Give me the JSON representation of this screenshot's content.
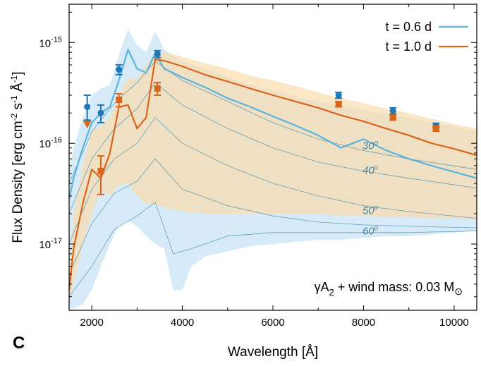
{
  "chart_data": {
    "type": "line",
    "panel_label": "C",
    "xlabel": "Wavelength [Å]",
    "ylabel_parts": {
      "a": "Flux Density [erg cm",
      "b": "-2",
      "c": " s",
      "d": "-1",
      "e": " Å",
      "f": "-1",
      "g": "]"
    },
    "xlim": [
      1500,
      10500
    ],
    "ylim": [
      2.2e-18,
      2.4e-15
    ],
    "yscale": "log",
    "x_ticks": [
      {
        "value": 2000,
        "label": "2000"
      },
      {
        "value": 4000,
        "label": "4000"
      },
      {
        "value": 6000,
        "label": "6000"
      },
      {
        "value": 8000,
        "label": "8000"
      },
      {
        "value": 10000,
        "label": "10000"
      }
    ],
    "y_ticks": [
      {
        "value": 1e-15,
        "base": "10",
        "exp": "-15"
      },
      {
        "value": 1e-16,
        "base": "10",
        "exp": "-16"
      },
      {
        "value": 1e-17,
        "base": "10",
        "exp": "-17"
      }
    ],
    "legend_placement": "top-right",
    "legend": [
      {
        "label": "t = 0.6 d",
        "color": "#5ab4dd"
      },
      {
        "label": "t = 1.0 d",
        "color": "#d9651b"
      }
    ],
    "model_label": {
      "a": "γA",
      "b": "2",
      "c": " + wind mass: 0.03 M",
      "d": "⊙"
    },
    "angle_labels": [
      {
        "text": "30",
        "sup": "o",
        "x": 8150,
        "y": 9.5e-17
      },
      {
        "text": "40",
        "sup": "o",
        "x": 8150,
        "y": 5.4e-17
      },
      {
        "text": "50",
        "sup": "o",
        "x": 8150,
        "y": 2.15e-17
      },
      {
        "text": "60",
        "sup": "o",
        "x": 8150,
        "y": 1.35e-17
      }
    ],
    "series": [
      {
        "name": "t = 0.6 d",
        "color": "#5ab4dd",
        "band_color": "#cfe8f6",
        "band_upper": {
          "x": [
            1500,
            1600,
            1800,
            2000,
            2200,
            2400,
            2600,
            2800,
            3000,
            3200,
            3400,
            3600,
            4000,
            4500,
            5000,
            5500,
            6000,
            6500,
            7000,
            7500,
            8000,
            8500,
            9000,
            9500,
            10000,
            10500
          ],
          "y": [
            5.5e-17,
            9e-17,
            1.8e-16,
            3e-16,
            3.5e-16,
            3.8e-16,
            7.5e-16,
            1.35e-15,
            9.5e-16,
            8e-16,
            1.3e-15,
            8.5e-16,
            6.5e-16,
            5.5e-16,
            4.5e-16,
            3.8e-16,
            3.3e-16,
            2.9e-16,
            2.6e-16,
            2.35e-16,
            2.15e-16,
            1.95e-16,
            1.8e-16,
            1.6e-16,
            1.45e-16,
            1.3e-16
          ]
        },
        "band_lower": {
          "x": [
            1500,
            1600,
            1800,
            2000,
            2200,
            2400,
            2600,
            2800,
            3000,
            3200,
            3400,
            3600,
            3800,
            4000,
            4200,
            4500,
            5000,
            5500,
            6000,
            6500,
            7000,
            7500,
            8000,
            8500,
            9000,
            9500,
            10000,
            10500
          ],
          "y": [
            2.3e-18,
            2.3e-18,
            2.5e-18,
            3.5e-18,
            6e-18,
            1e-17,
            1.5e-17,
            1.7e-17,
            1.5e-17,
            1.2e-17,
            1e-17,
            9e-18,
            3.5e-18,
            3.5e-18,
            6e-18,
            7.5e-18,
            8.5e-18,
            9.5e-18,
            1e-17,
            1.05e-17,
            1.1e-17,
            1.1e-17,
            1.15e-17,
            1.2e-17,
            1.2e-17,
            1.25e-17,
            1.3e-17,
            1.35e-17
          ]
        },
        "line": {
          "x": [
            1500,
            1600,
            1800,
            2000,
            2200,
            2400,
            2600,
            2800,
            3000,
            3200,
            3400,
            3600,
            4000,
            4500,
            5000,
            5500,
            6000,
            6500,
            7000,
            7500,
            8000,
            8500,
            9000,
            9500,
            10000,
            10500
          ],
          "y": [
            2.8e-17,
            4.5e-17,
            9e-17,
            1.6e-16,
            2e-16,
            2.3e-16,
            4.2e-16,
            8.5e-16,
            5.5e-16,
            5e-16,
            7.8e-16,
            5.5e-16,
            4.5e-16,
            3.6e-16,
            2.8e-16,
            2.3e-16,
            1.85e-16,
            1.5e-16,
            1.2e-16,
            9e-17,
            1.1e-16,
            8.5e-17,
            7e-17,
            6e-17,
            5.2e-17,
            4.5e-17
          ]
        },
        "points": [
          {
            "x": 1900,
            "y": 2.3e-16,
            "yerr_low": 1.7e-16,
            "yerr_high": 3e-16,
            "marker": "circle"
          },
          {
            "x": 2200,
            "y": 2e-16,
            "yerr_low": 1.6e-16,
            "yerr_high": 2.4e-16,
            "marker": "circle"
          },
          {
            "x": 2600,
            "y": 5.4e-16,
            "yerr_low": 4.8e-16,
            "yerr_high": 6e-16,
            "marker": "circle"
          },
          {
            "x": 3450,
            "y": 7.7e-16,
            "yerr_low": 7.1e-16,
            "yerr_high": 8.3e-16,
            "marker": "circle"
          },
          {
            "x": 7450,
            "y": 3e-16,
            "yerr_low": 2.8e-16,
            "yerr_high": 3.2e-16,
            "marker": "circle"
          },
          {
            "x": 8650,
            "y": 2.1e-16,
            "yerr_low": 1.95e-16,
            "yerr_high": 2.25e-16,
            "marker": "circle"
          },
          {
            "x": 9600,
            "y": 1.5e-16,
            "yerr_low": 1.42e-16,
            "yerr_high": 1.58e-16,
            "marker": "circle"
          }
        ]
      },
      {
        "name": "t = 1.0 d",
        "color": "#d9651b",
        "band_color": "#f9dcae",
        "band_upper": {
          "x": [
            1500,
            1600,
            1800,
            2000,
            2200,
            2400,
            2600,
            2800,
            3000,
            3200,
            3400,
            3600,
            4000,
            4500,
            5000,
            5500,
            6000,
            6500,
            7000,
            7500,
            8000,
            8500,
            9000,
            9500,
            10000,
            10500
          ],
          "y": [
            5e-18,
            2e-17,
            6e-17,
            1.3e-16,
            1.5e-16,
            1.8e-16,
            3e-16,
            4.5e-16,
            4.3e-16,
            6e-16,
            7.8e-16,
            8e-16,
            7.2e-16,
            6.2e-16,
            5.5e-16,
            4.7e-16,
            4.2e-16,
            3.7e-16,
            3.2e-16,
            2.8e-16,
            2.5e-16,
            2.2e-16,
            2e-16,
            1.75e-16,
            1.55e-16,
            1.4e-16
          ]
        },
        "band_lower": {
          "x": [
            1500,
            1600,
            1800,
            2000,
            2200,
            2400,
            2600,
            2800,
            3000,
            3200,
            3400,
            3600,
            4000,
            4500,
            5000,
            5500,
            6000,
            6500,
            7000,
            7500,
            8000,
            8500,
            9000,
            9500,
            10000,
            10500
          ],
          "y": [
            2.5e-18,
            4e-18,
            1e-17,
            2e-17,
            3.5e-17,
            3e-17,
            3.8e-17,
            4e-17,
            3e-17,
            2.5e-17,
            2.5e-17,
            2.3e-17,
            2.1e-17,
            2e-17,
            2e-17,
            2e-17,
            2e-17,
            2e-17,
            2e-17,
            1.9e-17,
            1.9e-17,
            1.85e-17,
            1.85e-17,
            1.8e-17,
            1.8e-17,
            1.75e-17
          ]
        },
        "line": {
          "x": [
            1500,
            1600,
            1800,
            2000,
            2200,
            2400,
            2600,
            2800,
            3000,
            3200,
            3400,
            3600,
            4000,
            4500,
            5000,
            5500,
            6000,
            6500,
            7000,
            7500,
            8000,
            8500,
            9000,
            9500,
            10000,
            10500
          ],
          "y": [
            3.5e-18,
            9e-18,
            2.5e-17,
            5.5e-17,
            4.5e-17,
            8e-17,
            2.3e-16,
            2.4e-16,
            1.4e-16,
            1.8e-16,
            6.8e-16,
            6.6e-16,
            5.8e-16,
            4.8e-16,
            4.1e-16,
            3.5e-16,
            3e-16,
            2.6e-16,
            2.25e-16,
            1.9e-16,
            1.65e-16,
            1.4e-16,
            1.2e-16,
            1e-16,
            8.8e-17,
            7.6e-17
          ]
        },
        "points": [
          {
            "x": 1900,
            "y": 1.55e-16,
            "marker": "down-triangle"
          },
          {
            "x": 2200,
            "y": 5.3e-17,
            "yerr_low": 3.1e-17,
            "yerr_high": 7.5e-17,
            "marker": "square"
          },
          {
            "x": 2600,
            "y": 2.7e-16,
            "yerr_low": 2.3e-16,
            "yerr_high": 3.1e-16,
            "marker": "square"
          },
          {
            "x": 3450,
            "y": 3.5e-16,
            "yerr_low": 3e-16,
            "yerr_high": 4e-16,
            "marker": "square"
          },
          {
            "x": 7450,
            "y": 2.45e-16,
            "yerr_low": 2.3e-16,
            "yerr_high": 2.6e-16,
            "marker": "square"
          },
          {
            "x": 8650,
            "y": 1.8e-16,
            "yerr_low": 1.7e-16,
            "yerr_high": 1.9e-16,
            "marker": "square"
          },
          {
            "x": 9600,
            "y": 1.4e-16,
            "yerr_low": 1.32e-16,
            "yerr_high": 1.48e-16,
            "marker": "square"
          }
        ]
      }
    ],
    "angle_curves": [
      {
        "x": [
          1500,
          2000,
          2500,
          3000,
          3400,
          4000,
          5000,
          6000,
          7000,
          8000,
          9000,
          10500
        ],
        "y": [
          4e-17,
          1.3e-16,
          2.5e-16,
          4e-16,
          6.5e-16,
          4.2e-16,
          2.6e-16,
          1.6e-16,
          1.1e-16,
          8.5e-17,
          7e-17,
          5.5e-17
        ]
      },
      {
        "x": [
          1500,
          2000,
          2500,
          3000,
          3400,
          4000,
          5000,
          6000,
          7000,
          8000,
          9000,
          10500
        ],
        "y": [
          2e-17,
          7e-17,
          1.4e-16,
          2.2e-16,
          4e-16,
          2.4e-16,
          1.4e-16,
          9e-17,
          6.5e-17,
          5.3e-17,
          4.5e-17,
          3.6e-17
        ]
      },
      {
        "x": [
          1500,
          2000,
          2500,
          3000,
          3400,
          4000,
          5000,
          6000,
          7000,
          8000,
          9000,
          10500
        ],
        "y": [
          1e-17,
          3.5e-17,
          7e-17,
          1e-16,
          1.8e-16,
          1e-16,
          6e-17,
          4e-17,
          3e-17,
          2.4e-17,
          2.1e-17,
          1.8e-17
        ]
      },
      {
        "x": [
          1500,
          2000,
          2500,
          3000,
          3400,
          4000,
          5000,
          6000,
          7000,
          8000,
          9000,
          10500
        ],
        "y": [
          5e-18,
          1.6e-17,
          3.2e-17,
          4.2e-17,
          7e-17,
          3.5e-17,
          2.4e-17,
          1.9e-17,
          1.65e-17,
          1.55e-17,
          1.5e-17,
          1.45e-17
        ]
      },
      {
        "x": [
          1500,
          2000,
          2500,
          3000,
          3400,
          3800,
          4200,
          5000,
          6000,
          7000,
          8000,
          9000,
          10500
        ],
        "y": [
          3e-18,
          6e-18,
          1.4e-17,
          1.9e-17,
          2.6e-17,
          8e-18,
          9e-18,
          1.2e-17,
          1.3e-17,
          1.3e-17,
          1.3e-17,
          1.3e-17,
          1.35e-17
        ]
      }
    ]
  }
}
